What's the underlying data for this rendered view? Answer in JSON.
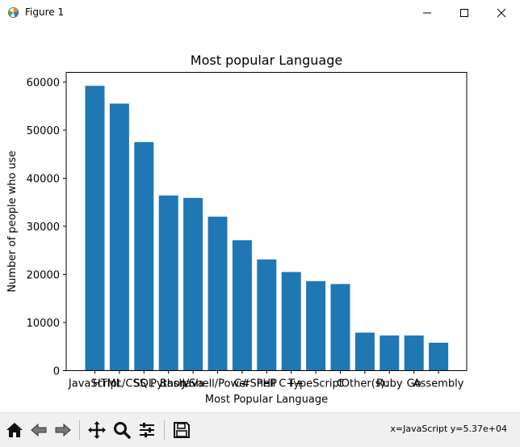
{
  "window": {
    "title": "Figure 1"
  },
  "toolbar": {
    "buttons": [
      "home-icon",
      "back-icon",
      "forward-icon",
      "pan-icon",
      "zoom-icon",
      "configure-subplots-icon",
      "save-icon"
    ],
    "status": "x=JavaScript y=5.37e+04"
  },
  "colors": {
    "bar": "#1f77b4",
    "axis": "#000000",
    "toolbar_bg": "#f0f0f0"
  },
  "chart_data": {
    "type": "bar",
    "title": "Most popular Language",
    "xlabel": "Most Popular Language",
    "ylabel": "Number of people who use",
    "ylim": [
      0,
      62000
    ],
    "yticks": [
      0,
      10000,
      20000,
      30000,
      40000,
      50000,
      60000
    ],
    "grid": false,
    "categories": [
      "JavaScript",
      "HTML/CSS",
      "SQL",
      "Python",
      "Java",
      "Bash/Shell/PowerShell",
      "C#",
      "PHP",
      "C++",
      "TypeScript",
      "C",
      "Other(s):",
      "Ruby",
      "Go",
      "Assembly"
    ],
    "values": [
      59200,
      55500,
      47500,
      36400,
      35900,
      32000,
      27100,
      23100,
      20500,
      18600,
      18000,
      7900,
      7300,
      7300,
      5800
    ]
  }
}
